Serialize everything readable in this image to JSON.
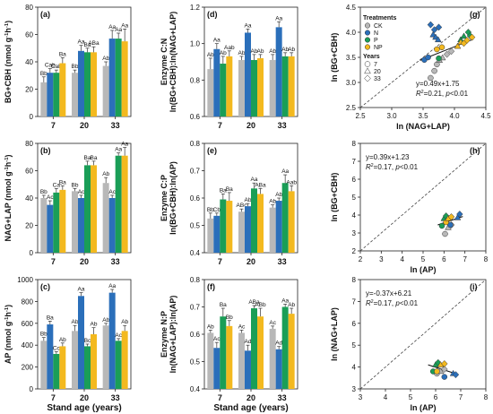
{
  "colors": {
    "CK": "#b8b8b8",
    "N": "#2b6fba",
    "P": "#1a9e57",
    "NP": "#f3b91f"
  },
  "legend": {
    "treatments_title": "Treatments",
    "treatments": [
      "CK",
      "N",
      "P",
      "NP"
    ],
    "years_title": "Years",
    "years": [
      "7",
      "20",
      "33"
    ]
  },
  "x_title": "Stand age (years)",
  "chart_data": [
    {
      "type": "bar",
      "panel": "(a)",
      "ylabel": "BG+CBH (nmol g-1h-1)",
      "categories": [
        "7",
        "20",
        "33"
      ],
      "ylim": [
        0,
        80
      ],
      "yticks": [
        0,
        20,
        40,
        60,
        80
      ],
      "series": [
        {
          "name": "CK",
          "values": [
            25,
            32,
            37
          ],
          "err": [
            4,
            2,
            3
          ]
        },
        {
          "name": "N",
          "values": [
            32,
            48,
            57
          ],
          "err": [
            3,
            4,
            6
          ]
        },
        {
          "name": "P",
          "values": [
            32,
            47,
            57
          ],
          "err": [
            2,
            3,
            4
          ]
        },
        {
          "name": "NP",
          "values": [
            39,
            47,
            55
          ],
          "err": [
            4,
            4,
            9
          ]
        }
      ],
      "letters": [
        [
          "Bb",
          "Cab",
          "Cab",
          "Ba"
        ],
        [
          "Bb",
          "Aa",
          "Ba",
          "ABa"
        ],
        [
          "Ab",
          "Aa",
          "Aa",
          "Aa"
        ]
      ]
    },
    {
      "type": "bar",
      "panel": "(b)",
      "ylabel": "NAG+LAP (nmol g-1h-1)",
      "categories": [
        "7",
        "20",
        "33"
      ],
      "ylim": [
        0,
        80
      ],
      "yticks": [
        0,
        20,
        40,
        60,
        80
      ],
      "series": [
        {
          "name": "CK",
          "values": [
            40,
            45,
            51
          ],
          "err": [
            2,
            2,
            4
          ]
        },
        {
          "name": "N",
          "values": [
            35,
            40,
            40
          ],
          "err": [
            3,
            2,
            2
          ]
        },
        {
          "name": "P",
          "values": [
            44,
            64,
            71
          ],
          "err": [
            3,
            3,
            2
          ]
        },
        {
          "name": "NP",
          "values": [
            46,
            64,
            71
          ],
          "err": [
            3,
            3,
            6
          ]
        }
      ],
      "letters": [
        [
          "Bb",
          "Ac",
          "Ca",
          "Ba"
        ],
        [
          "Bb",
          "Ac",
          "Ba",
          "Ba"
        ],
        [
          "Ab",
          "Ac",
          "Aa",
          "Aa"
        ]
      ]
    },
    {
      "type": "bar",
      "panel": "(c)",
      "ylabel": "AP (nmol g-1h-1)",
      "categories": [
        "7",
        "20",
        "33"
      ],
      "ylim": [
        0,
        1000
      ],
      "yticks": [
        0,
        200,
        400,
        600,
        800,
        1000
      ],
      "series": [
        {
          "name": "CK",
          "values": [
            440,
            530,
            580
          ],
          "err": [
            30,
            50,
            20
          ]
        },
        {
          "name": "N",
          "values": [
            590,
            850,
            880
          ],
          "err": [
            30,
            30,
            30
          ]
        },
        {
          "name": "P",
          "values": [
            320,
            390,
            440
          ],
          "err": [
            20,
            20,
            20
          ]
        },
        {
          "name": "NP",
          "values": [
            390,
            500,
            530
          ],
          "err": [
            30,
            60,
            50
          ]
        }
      ],
      "letters": [
        [
          "Bb",
          "Ba",
          "Cc",
          "Ab"
        ],
        [
          "Ab",
          "Aa",
          "Bc",
          "Ab"
        ],
        [
          "Ab",
          "Aa",
          "Ac",
          "Ab"
        ]
      ]
    },
    {
      "type": "bar",
      "panel": "(d)",
      "ylabel": "Enzyme C:N",
      "ylabel2": "ln(BG+CBH):ln(NAG+LAP)",
      "categories": [
        "7",
        "20",
        "33"
      ],
      "ylim": [
        0.6,
        1.2
      ],
      "yticks": [
        0.6,
        0.8,
        1.0,
        1.2
      ],
      "series": [
        {
          "name": "CK",
          "values": [
            0.86,
            0.91,
            0.91
          ],
          "err": [
            0.06,
            0.02,
            0.03
          ]
        },
        {
          "name": "N",
          "values": [
            0.97,
            1.06,
            1.09
          ],
          "err": [
            0.03,
            0.02,
            0.03
          ]
        },
        {
          "name": "P",
          "values": [
            0.89,
            0.91,
            0.93
          ],
          "err": [
            0.04,
            0.03,
            0.02
          ]
        },
        {
          "name": "NP",
          "values": [
            0.93,
            0.92,
            0.93
          ],
          "err": [
            0.03,
            0.02,
            0.02
          ]
        }
      ],
      "letters": [
        [
          "Ab",
          "Aa",
          "Ab",
          "Aab"
        ],
        [
          "Ab",
          "Aa",
          "Ab",
          "Ab"
        ],
        [
          "Ab",
          "Aa",
          "Ab",
          "Ab"
        ]
      ]
    },
    {
      "type": "bar",
      "panel": "(e)",
      "ylabel": "Enzyme C:P",
      "ylabel2": "ln(BG+CBH):ln(AP)",
      "categories": [
        "7",
        "20",
        "33"
      ],
      "ylim": [
        0.4,
        0.8
      ],
      "yticks": [
        0.4,
        0.5,
        0.6,
        0.7,
        0.8
      ],
      "series": [
        {
          "name": "CK",
          "values": [
            0.525,
            0.55,
            0.565
          ],
          "err": [
            0.02,
            0.01,
            0.01
          ]
        },
        {
          "name": "N",
          "values": [
            0.535,
            0.57,
            0.59
          ],
          "err": [
            0.01,
            0.01,
            0.01
          ]
        },
        {
          "name": "P",
          "values": [
            0.595,
            0.635,
            0.655
          ],
          "err": [
            0.02,
            0.02,
            0.03
          ]
        },
        {
          "name": "NP",
          "values": [
            0.59,
            0.615,
            0.625
          ],
          "err": [
            0.03,
            0.02,
            0.02
          ]
        }
      ],
      "letters": [
        [
          "Bb",
          "Cb",
          "Ba",
          "Ba"
        ],
        [
          "ABc",
          "Ab",
          "Aa",
          "ABa"
        ],
        [
          "Ab",
          "Ab",
          "Aa",
          "Aab"
        ]
      ]
    },
    {
      "type": "bar",
      "panel": "(f)",
      "ylabel": "Enzyme N:P",
      "ylabel2": "ln(NAG+LAP):ln(AP)",
      "categories": [
        "7",
        "20",
        "33"
      ],
      "ylim": [
        0.4,
        0.8
      ],
      "yticks": [
        0.4,
        0.5,
        0.6,
        0.7,
        0.8
      ],
      "series": [
        {
          "name": "CK",
          "values": [
            0.605,
            0.605,
            0.62
          ],
          "err": [
            0.01,
            0.01,
            0.01
          ]
        },
        {
          "name": "N",
          "values": [
            0.55,
            0.54,
            0.545
          ],
          "err": [
            0.02,
            0.02,
            0.01
          ]
        },
        {
          "name": "P",
          "values": [
            0.665,
            0.695,
            0.7
          ],
          "err": [
            0.03,
            0.01,
            0.01
          ]
        },
        {
          "name": "NP",
          "values": [
            0.63,
            0.665,
            0.675
          ],
          "err": [
            0.02,
            0.03,
            0.02
          ]
        }
      ],
      "letters": [
        [
          "Ab",
          "Ac",
          "Ba",
          "Bb"
        ],
        [
          "Ac",
          "Ad",
          "ABa",
          "ABb"
        ],
        [
          "Ac",
          "Ad",
          "Aa",
          "Ab"
        ]
      ]
    },
    {
      "type": "scatter",
      "panel": "(g)",
      "xlabel": "ln (NAG+LAP)",
      "ylabel": "ln (BG+CBH)",
      "xlim": [
        2.5,
        4.5
      ],
      "ylim": [
        2.5,
        4.5
      ],
      "xticks": [
        2.5,
        3.0,
        3.5,
        4.0,
        4.5
      ],
      "yticks": [
        2.5,
        3.0,
        3.5,
        4.0,
        4.5
      ],
      "equation": "y=0.49x+1.75",
      "stats": "R2=0.21, p<0.01",
      "fit": [
        [
          3.45,
          3.44
        ],
        [
          4.3,
          3.86
        ]
      ],
      "points": [
        {
          "t": "CK",
          "y": "7",
          "x": 3.62,
          "v": 3.09
        },
        {
          "t": "CK",
          "y": "7",
          "x": 3.68,
          "v": 3.23
        },
        {
          "t": "CK",
          "y": "7",
          "x": 3.72,
          "v": 3.36
        },
        {
          "t": "CK",
          "y": "20",
          "x": 3.76,
          "v": 3.44
        },
        {
          "t": "CK",
          "y": "20",
          "x": 3.81,
          "v": 3.49
        },
        {
          "t": "CK",
          "y": "33",
          "x": 3.88,
          "v": 3.56
        },
        {
          "t": "CK",
          "y": "33",
          "x": 3.95,
          "v": 3.62
        },
        {
          "t": "N",
          "y": "7",
          "x": 3.52,
          "v": 3.45
        },
        {
          "t": "N",
          "y": "7",
          "x": 3.58,
          "v": 3.5
        },
        {
          "t": "N",
          "y": "20",
          "x": 3.66,
          "v": 3.95
        },
        {
          "t": "N",
          "y": "20",
          "x": 3.7,
          "v": 3.9
        },
        {
          "t": "N",
          "y": "20",
          "x": 3.74,
          "v": 3.85
        },
        {
          "t": "N",
          "y": "33",
          "x": 3.62,
          "v": 4.15
        },
        {
          "t": "N",
          "y": "33",
          "x": 3.68,
          "v": 4.05
        },
        {
          "t": "N",
          "y": "33",
          "x": 3.75,
          "v": 4.1
        },
        {
          "t": "P",
          "y": "7",
          "x": 3.75,
          "v": 3.48
        },
        {
          "t": "P",
          "y": "20",
          "x": 4.1,
          "v": 3.85
        },
        {
          "t": "P",
          "y": "20",
          "x": 4.15,
          "v": 3.92
        },
        {
          "t": "P",
          "y": "33",
          "x": 4.22,
          "v": 4.0
        },
        {
          "t": "P",
          "y": "33",
          "x": 4.25,
          "v": 3.93
        },
        {
          "t": "NP",
          "y": "7",
          "x": 3.72,
          "v": 3.66
        },
        {
          "t": "NP",
          "y": "7",
          "x": 3.8,
          "v": 3.7
        },
        {
          "t": "NP",
          "y": "20",
          "x": 4.05,
          "v": 3.72
        },
        {
          "t": "NP",
          "y": "20",
          "x": 4.1,
          "v": 3.8
        },
        {
          "t": "NP",
          "y": "33",
          "x": 4.15,
          "v": 3.78
        },
        {
          "t": "NP",
          "y": "33",
          "x": 4.2,
          "v": 3.84
        },
        {
          "t": "NP",
          "y": "33",
          "x": 4.28,
          "v": 3.9
        }
      ]
    },
    {
      "type": "scatter",
      "panel": "(h)",
      "xlabel": "ln (AP)",
      "ylabel": "ln (BG+CBH)",
      "xlim": [
        2,
        8
      ],
      "ylim": [
        2,
        8
      ],
      "xticks": [
        2,
        3,
        4,
        5,
        6,
        7,
        8
      ],
      "yticks": [
        2,
        3,
        4,
        5,
        6,
        7,
        8
      ],
      "equation": "y=0.39x+1.23",
      "stats": "R2=0.17, p<0.01",
      "fit": [
        [
          5.7,
          3.45
        ],
        [
          6.9,
          3.92
        ]
      ],
      "points": [
        {
          "t": "CK",
          "y": "7",
          "x": 6.05,
          "v": 2.95
        },
        {
          "t": "CK",
          "y": "20",
          "x": 6.2,
          "v": 3.3
        },
        {
          "t": "CK",
          "y": "33",
          "x": 6.35,
          "v": 3.45
        },
        {
          "t": "N",
          "y": "7",
          "x": 6.3,
          "v": 3.45
        },
        {
          "t": "N",
          "y": "20",
          "x": 6.65,
          "v": 3.85
        },
        {
          "t": "N",
          "y": "33",
          "x": 6.75,
          "v": 4.05
        },
        {
          "t": "P",
          "y": "7",
          "x": 5.9,
          "v": 3.4
        },
        {
          "t": "P",
          "y": "20",
          "x": 6.0,
          "v": 3.8
        },
        {
          "t": "P",
          "y": "33",
          "x": 6.1,
          "v": 3.95
        },
        {
          "t": "NP",
          "y": "7",
          "x": 6.1,
          "v": 3.6
        },
        {
          "t": "NP",
          "y": "20",
          "x": 6.2,
          "v": 3.8
        },
        {
          "t": "NP",
          "y": "33",
          "x": 6.35,
          "v": 3.9
        }
      ]
    },
    {
      "type": "scatter",
      "panel": "(i)",
      "xlabel": "ln (AP)",
      "ylabel": "ln (NAG+LAP)",
      "xlim": [
        3,
        8
      ],
      "ylim": [
        3,
        8
      ],
      "xticks": [
        3,
        4,
        5,
        6,
        7,
        8
      ],
      "yticks": [
        3,
        4,
        5,
        6,
        7,
        8
      ],
      "equation": "y=-0.37x+6.21",
      "stats": "R2=0.17, p<0.01",
      "fit": [
        [
          5.7,
          4.1
        ],
        [
          6.9,
          3.66
        ]
      ],
      "points": [
        {
          "t": "CK",
          "y": "7",
          "x": 6.05,
          "v": 3.7
        },
        {
          "t": "CK",
          "y": "20",
          "x": 6.2,
          "v": 3.8
        },
        {
          "t": "CK",
          "y": "33",
          "x": 6.35,
          "v": 3.9
        },
        {
          "t": "N",
          "y": "7",
          "x": 6.35,
          "v": 3.55
        },
        {
          "t": "N",
          "y": "20",
          "x": 6.7,
          "v": 3.7
        },
        {
          "t": "N",
          "y": "33",
          "x": 6.8,
          "v": 3.65
        },
        {
          "t": "P",
          "y": "7",
          "x": 5.9,
          "v": 3.8
        },
        {
          "t": "P",
          "y": "20",
          "x": 6.0,
          "v": 4.1
        },
        {
          "t": "P",
          "y": "33",
          "x": 6.1,
          "v": 4.2
        },
        {
          "t": "NP",
          "y": "7",
          "x": 6.05,
          "v": 3.8
        },
        {
          "t": "NP",
          "y": "20",
          "x": 6.2,
          "v": 4.1
        },
        {
          "t": "NP",
          "y": "33",
          "x": 6.35,
          "v": 4.15
        }
      ]
    }
  ]
}
